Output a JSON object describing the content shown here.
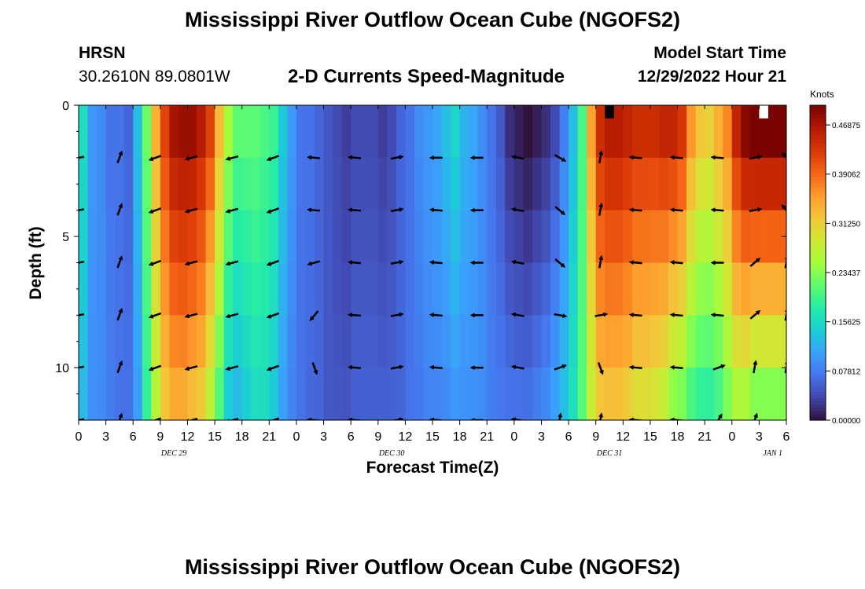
{
  "header": {
    "title": "Mississippi River Outflow Ocean Cube (NGOFS2)",
    "station": "HRSN",
    "coordinates": "30.2610N  89.0801W",
    "subtitle": "2-D Currents Speed-Magnitude",
    "model_start_label": "Model Start Time",
    "model_start_value": "12/29/2022 Hour 21"
  },
  "footer": {
    "title": "Mississippi River Outflow Ocean Cube (NGOFS2)"
  },
  "chart_data": {
    "type": "heatmap",
    "title": "2-D Currents Speed-Magnitude",
    "xlabel": "Forecast Time(Z)",
    "ylabel": "Depth (ft)",
    "x_ticks": [
      "0",
      "3",
      "6",
      "9",
      "12",
      "15",
      "18",
      "21",
      "0",
      "3",
      "6",
      "9",
      "12",
      "15",
      "18",
      "21",
      "0",
      "3",
      "6",
      "9",
      "12",
      "15",
      "18",
      "21",
      "0",
      "3",
      "6"
    ],
    "date_labels": [
      {
        "label": "DEC 29",
        "tick_index": 3.5
      },
      {
        "label": "DEC 30",
        "tick_index": 11.5
      },
      {
        "label": "DEC 31",
        "tick_index": 19.5
      },
      {
        "label": "JAN 1",
        "tick_index": 25.5
      }
    ],
    "y_range": [
      0,
      12
    ],
    "y_ticks": [
      "0",
      "5",
      "10"
    ],
    "y_tick_values": [
      0,
      5,
      10
    ],
    "x_range_hours": [
      0,
      78
    ],
    "time_hours": [
      0,
      1,
      2,
      3,
      4,
      5,
      6,
      7,
      8,
      9,
      10,
      11,
      12,
      13,
      14,
      15,
      16,
      17,
      18,
      19,
      20,
      21,
      22,
      23,
      24,
      25,
      26,
      27,
      28,
      29,
      30,
      31,
      32,
      33,
      34,
      35,
      36,
      37,
      38,
      39,
      40,
      41,
      42,
      43,
      44,
      45,
      46,
      47,
      48,
      49,
      50,
      51,
      52,
      53,
      54,
      55,
      56,
      57,
      58,
      59,
      60,
      61,
      62,
      63,
      64,
      65,
      66,
      67,
      68,
      69,
      70,
      71,
      72,
      73,
      74,
      75,
      76,
      77
    ],
    "depths_ft": [
      0,
      2,
      4,
      6,
      8,
      10,
      12
    ],
    "surface_speed_knots": [
      0.16,
      0.1,
      0.09,
      0.07,
      0.07,
      0.06,
      0.13,
      0.22,
      0.34,
      0.42,
      0.47,
      0.48,
      0.48,
      0.46,
      0.42,
      0.33,
      0.25,
      0.21,
      0.21,
      0.21,
      0.2,
      0.19,
      0.14,
      0.1,
      0.07,
      0.07,
      0.06,
      0.05,
      0.04,
      0.03,
      0.04,
      0.04,
      0.04,
      0.03,
      0.04,
      0.06,
      0.07,
      0.09,
      0.1,
      0.11,
      0.13,
      0.15,
      0.12,
      0.11,
      0.09,
      0.07,
      0.05,
      0.02,
      0.01,
      0.0,
      0.01,
      0.02,
      0.04,
      0.08,
      0.13,
      0.2,
      0.35,
      0.44,
      0.46,
      0.46,
      0.45,
      0.44,
      0.44,
      0.44,
      0.45,
      0.45,
      0.43,
      0.36,
      0.32,
      0.31,
      0.34,
      0.37,
      0.45,
      0.49,
      0.5,
      0.5,
      0.5,
      0.5
    ],
    "bottom_speed_knots": [
      0.12,
      0.09,
      0.09,
      0.08,
      0.07,
      0.07,
      0.1,
      0.18,
      0.25,
      0.3,
      0.32,
      0.32,
      0.3,
      0.29,
      0.24,
      0.18,
      0.12,
      0.11,
      0.13,
      0.15,
      0.15,
      0.13,
      0.1,
      0.08,
      0.07,
      0.06,
      0.06,
      0.05,
      0.05,
      0.05,
      0.06,
      0.06,
      0.06,
      0.06,
      0.06,
      0.06,
      0.07,
      0.07,
      0.08,
      0.08,
      0.08,
      0.09,
      0.09,
      0.09,
      0.09,
      0.08,
      0.08,
      0.08,
      0.08,
      0.08,
      0.09,
      0.1,
      0.12,
      0.14,
      0.17,
      0.21,
      0.26,
      0.3,
      0.3,
      0.3,
      0.29,
      0.27,
      0.27,
      0.26,
      0.24,
      0.2,
      0.19,
      0.17,
      0.16,
      0.16,
      0.17,
      0.2,
      0.22,
      0.21,
      0.18,
      0.18,
      0.18,
      0.18
    ],
    "missing_cells": [
      {
        "time_hour": 58,
        "depth_ft": 0,
        "color": "#000000"
      },
      {
        "time_hour": 75,
        "depth_ft": 0,
        "color": "#ffffff"
      }
    ],
    "vector_times_hours": [
      0,
      4.5,
      8.5,
      12.5,
      17,
      21.5,
      26,
      30.5,
      35,
      39.5,
      44,
      48.5,
      53,
      57.5,
      61.5,
      66,
      70.5,
      74.5,
      78
    ],
    "vector_depths_ft": [
      2,
      4,
      6,
      8,
      10,
      12
    ],
    "vector_angles_deg": [
      [
        190,
        70,
        200,
        195,
        195,
        200,
        175,
        175,
        10,
        180,
        180,
        170,
        -30,
        80,
        175,
        175,
        175,
        10,
        130
      ],
      [
        190,
        70,
        200,
        195,
        195,
        200,
        175,
        175,
        10,
        175,
        180,
        170,
        -40,
        80,
        175,
        175,
        175,
        10,
        130
      ],
      [
        190,
        70,
        200,
        195,
        195,
        200,
        195,
        175,
        10,
        175,
        180,
        170,
        -40,
        80,
        175,
        175,
        180,
        40,
        80
      ],
      [
        190,
        70,
        200,
        195,
        195,
        200,
        230,
        175,
        10,
        175,
        180,
        170,
        -10,
        10,
        175,
        175,
        175,
        40,
        80
      ],
      [
        190,
        70,
        200,
        195,
        195,
        200,
        -70,
        175,
        10,
        175,
        180,
        170,
        20,
        -70,
        175,
        175,
        20,
        80,
        80
      ],
      [
        190,
        70,
        200,
        195,
        195,
        200,
        175,
        175,
        10,
        175,
        180,
        170,
        80,
        80,
        175,
        175,
        60,
        70,
        60
      ]
    ],
    "colorbar": {
      "label": "Knots",
      "range": [
        0,
        0.5
      ],
      "tick_values": [
        0.0,
        0.078125,
        0.15625,
        0.234375,
        0.3125,
        0.390625,
        0.46875
      ],
      "tick_labels": [
        "0.00000",
        "0.07812",
        "0.15625",
        "0.23437",
        "0.31250",
        "0.39062",
        "0.46875"
      ],
      "colormap": [
        "#30123b",
        "#4145ab",
        "#4675ed",
        "#39a2fc",
        "#1bcfd4",
        "#24eca6",
        "#61fc6c",
        "#a4fc3b",
        "#d1e834",
        "#f3c63a",
        "#fe9b2d",
        "#f36315",
        "#d93806",
        "#b11901",
        "#7a0402"
      ]
    }
  }
}
